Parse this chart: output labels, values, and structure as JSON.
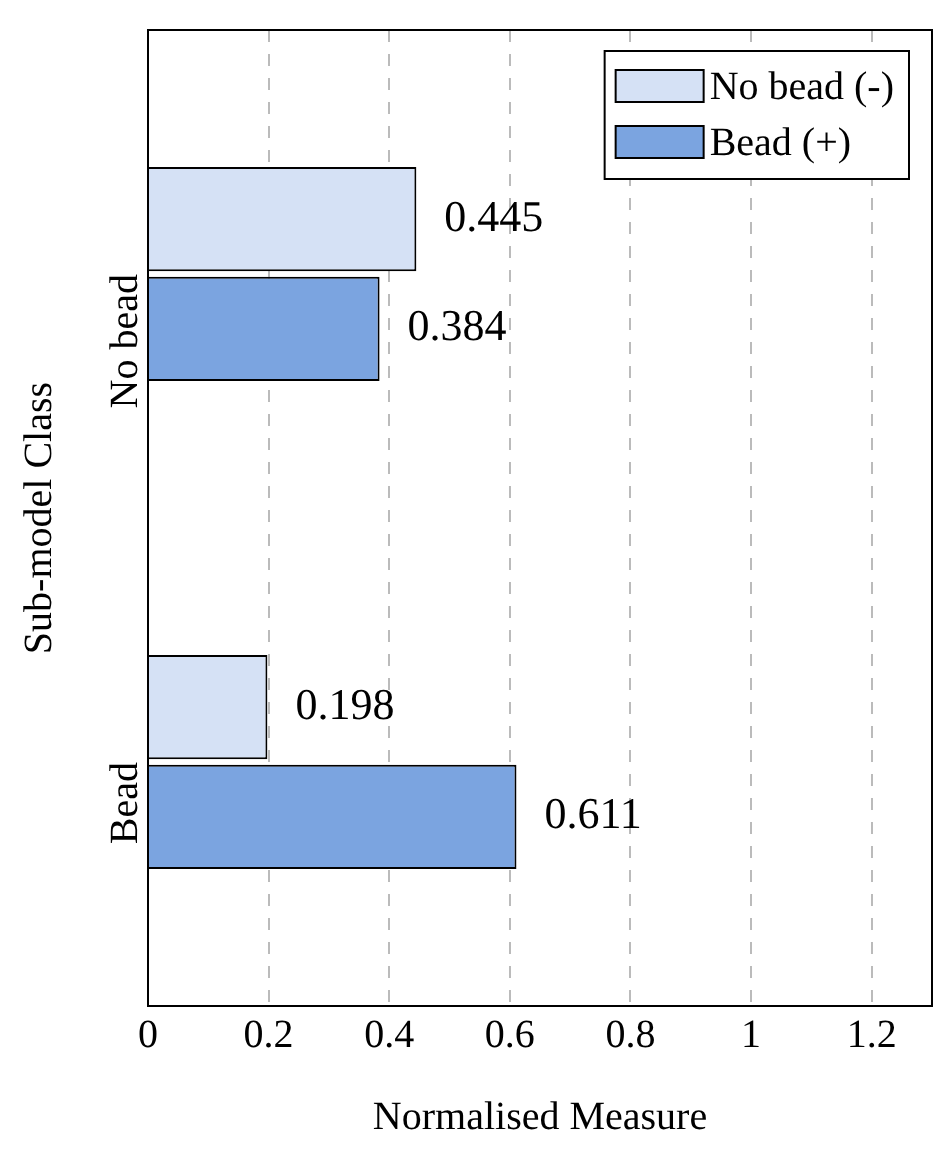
{
  "chart_data": {
    "type": "bar",
    "orientation": "horizontal",
    "xlabel": "Normalised Measure",
    "ylabel": "Sub-model Class",
    "categories": [
      "No bead",
      "Bead"
    ],
    "series": [
      {
        "name": "No bead (-)",
        "color": "#d5e1f5",
        "values": [
          0.445,
          0.198
        ]
      },
      {
        "name": "Bead (+)",
        "color": "#7ba4e0",
        "values": [
          0.384,
          0.611
        ]
      }
    ],
    "xlim": [
      0,
      1.3
    ],
    "xticks": [
      0,
      0.2,
      0.4,
      0.6,
      0.8,
      1,
      1.2
    ],
    "grid": "x",
    "legend": "top right",
    "data_labels": true
  }
}
